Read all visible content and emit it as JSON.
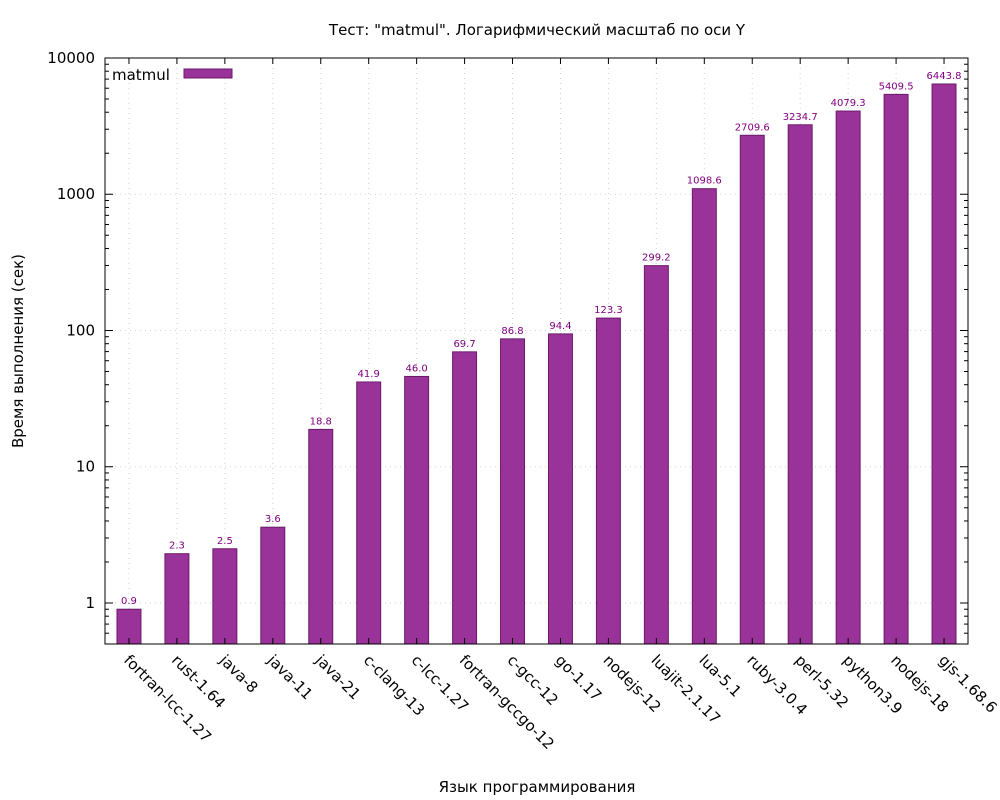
{
  "chart_data": {
    "type": "bar",
    "title": "Тест: \"matmul\". Логарифмический масштаб по оси Y",
    "xlabel": "Язык программирования",
    "ylabel": "Время выполнения (сек)",
    "yscale": "log",
    "ylim": [
      0.5,
      10000
    ],
    "yticks": [
      1,
      10,
      100,
      1000,
      10000
    ],
    "ytick_labels": [
      "1",
      "10",
      "100",
      "1000",
      "10000"
    ],
    "grid": true,
    "legend_position": "top-left",
    "categories": [
      "fortran-lcc-1.27",
      "rust-1.64",
      "java-8",
      "java-11",
      "java-21",
      "c-clang-13",
      "c-lcc-1.27",
      "fortran-gccgo-12",
      "c-gcc-12",
      "go-1.17",
      "nodejs-12",
      "luajit-2.1.17",
      "lua-5.1",
      "ruby-3.0.4",
      "perl-5.32",
      "python3.9",
      "nodejs-18",
      "gjs-1.68.6"
    ],
    "series": [
      {
        "name": "matmul",
        "color": "#993399",
        "edge_color": "#6a1a6a",
        "label_color": "#800080",
        "values": [
          0.9,
          2.3,
          2.5,
          3.6,
          18.8,
          41.9,
          46.0,
          69.7,
          86.8,
          94.4,
          123.3,
          299.2,
          1098.6,
          2709.6,
          3234.7,
          4079.3,
          5409.5,
          6443.8
        ],
        "value_labels": [
          "0.9",
          "2.3",
          "2.5",
          "3.6",
          "18.8",
          "41.9",
          "46.0",
          "69.7",
          "86.8",
          "94.4",
          "123.3",
          "299.2",
          "1098.6",
          "2709.6",
          "3234.7",
          "4079.3",
          "5409.5",
          "6443.8"
        ]
      }
    ]
  }
}
